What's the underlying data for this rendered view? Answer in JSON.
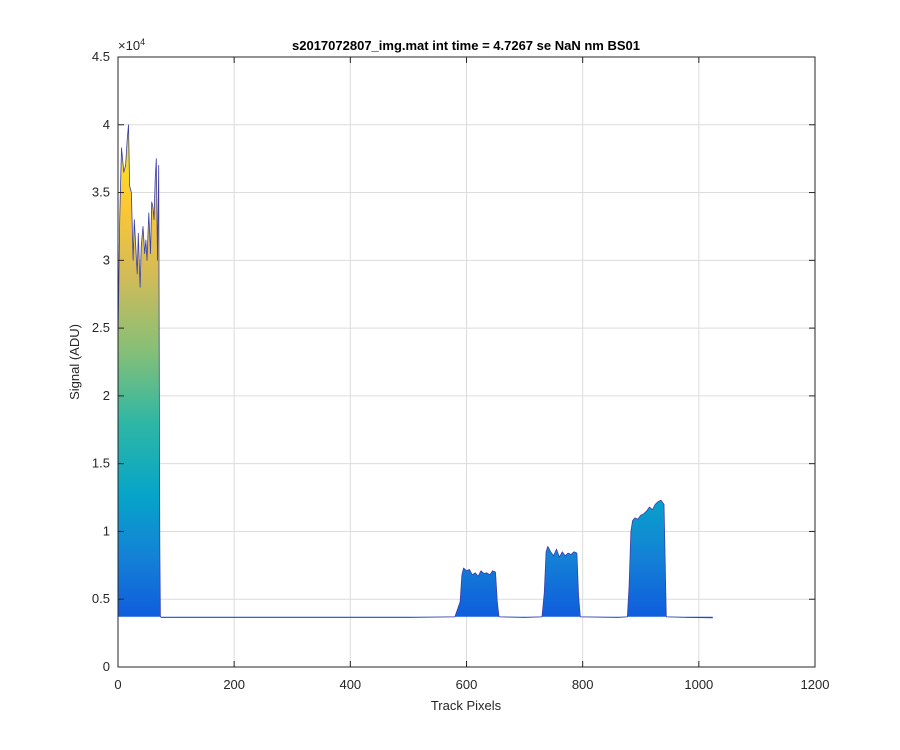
{
  "chart_data": {
    "type": "area",
    "title": "s2017072807_img.mat int time = 4.7267 se  NaN nm BS01",
    "xlabel": "Track Pixels",
    "ylabel": "Signal (ADU)",
    "xlim": [
      0,
      1200
    ],
    "ylim": [
      0,
      45000
    ],
    "x_ticks": [
      0,
      200,
      400,
      600,
      800,
      1000,
      1200
    ],
    "x_tick_labels": [
      "0",
      "200",
      "400",
      "600",
      "800",
      "1000",
      "1200"
    ],
    "y_ticks": [
      0,
      5000,
      10000,
      15000,
      20000,
      25000,
      30000,
      35000,
      40000,
      45000
    ],
    "y_tick_labels": [
      "0",
      "0.5",
      "1",
      "1.5",
      "2",
      "2.5",
      "3",
      "3.5",
      "4",
      "4.5"
    ],
    "y_exponent_label": "×10",
    "y_exponent_power": "4",
    "grid": true,
    "colormap": "parula",
    "baseline": 3700,
    "x_extent": [
      0,
      1024
    ],
    "series": [
      {
        "x": [
          0,
          3,
          6,
          10,
          13,
          16,
          18,
          20,
          23,
          26,
          28,
          30,
          33,
          35,
          38,
          40,
          43,
          46,
          48,
          50,
          53,
          56,
          58,
          60,
          62,
          64,
          66,
          68,
          70,
          71,
          72,
          73,
          75,
          100,
          200,
          300,
          400,
          500,
          580,
          589,
          592,
          595,
          600,
          605,
          610,
          615,
          620,
          625,
          630,
          635,
          640,
          645,
          650,
          653,
          656,
          700,
          730,
          734,
          737,
          740,
          745,
          750,
          755,
          760,
          765,
          770,
          775,
          780,
          785,
          790,
          793,
          796,
          860,
          877,
          880,
          883,
          886,
          890,
          895,
          900,
          905,
          910,
          915,
          920,
          925,
          930,
          935,
          940,
          942,
          944,
          980,
          1024
        ],
        "y": [
          24000,
          33000,
          38300,
          36500,
          37000,
          39000,
          40000,
          35500,
          35000,
          30000,
          33000,
          31500,
          29000,
          32000,
          28000,
          31000,
          32500,
          30500,
          31500,
          30000,
          33500,
          30500,
          34300,
          34000,
          33000,
          36000,
          37500,
          30000,
          37000,
          24000,
          9000,
          3700,
          3650,
          3650,
          3650,
          3650,
          3650,
          3650,
          3700,
          4800,
          6800,
          7300,
          7100,
          7200,
          6800,
          6950,
          6700,
          7100,
          6900,
          6950,
          6800,
          7100,
          7000,
          4800,
          3700,
          3650,
          3700,
          5500,
          8500,
          8900,
          8500,
          8200,
          8700,
          8100,
          8500,
          8200,
          8400,
          8300,
          8500,
          8400,
          5200,
          3700,
          3650,
          3700,
          6000,
          10000,
          10800,
          11000,
          10900,
          11200,
          11300,
          11500,
          11800,
          11600,
          12000,
          12200,
          12300,
          12000,
          8000,
          3700,
          3650,
          3620
        ]
      }
    ]
  }
}
